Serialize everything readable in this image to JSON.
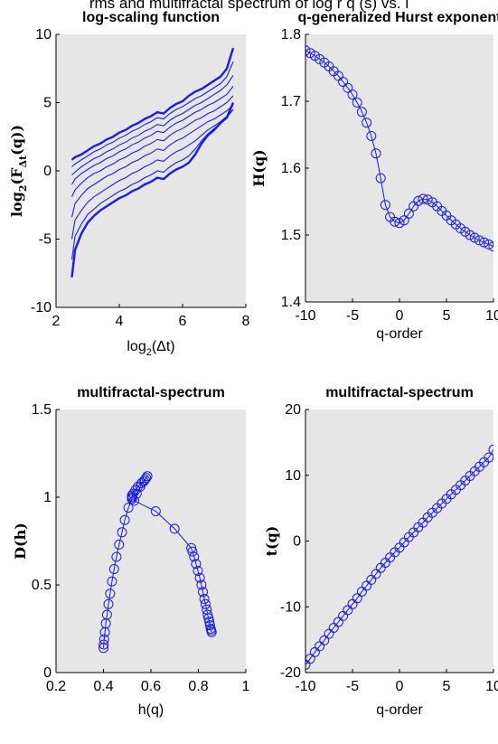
{
  "figure": {
    "heading": "rms and multifractal spectrum of log r q (s) vs. l"
  },
  "colors": {
    "series": "#1a1aee",
    "axes_bg": "#e6e6e6",
    "axis": "#000000"
  },
  "chart_data": [
    {
      "id": "log-scaling",
      "type": "line",
      "title": "log-scaling function",
      "xlabel": "log2(Δt)",
      "ylabel": "log2(F_Δt(q))",
      "xlim": [
        2,
        8
      ],
      "ylim": [
        -10,
        10
      ],
      "xticks": [
        2,
        4,
        6,
        8
      ],
      "yticks": [
        -10,
        -5,
        0,
        5,
        10
      ],
      "grid": false,
      "x": [
        2.5,
        2.6,
        2.8,
        3.0,
        3.2,
        3.4,
        3.6,
        3.8,
        4.0,
        4.2,
        4.4,
        4.6,
        4.8,
        5.0,
        5.2,
        5.4,
        5.6,
        5.8,
        6.0,
        6.2,
        6.4,
        6.6,
        6.8,
        7.0,
        7.2,
        7.4,
        7.6
      ],
      "series": [
        {
          "values": [
            0.8,
            1.0,
            1.2,
            1.5,
            1.8,
            2.0,
            2.3,
            2.5,
            2.8,
            3.0,
            3.3,
            3.5,
            3.8,
            4.0,
            4.3,
            4.2,
            4.6,
            4.9,
            5.1,
            5.5,
            5.8,
            6.0,
            6.3,
            6.6,
            6.9,
            7.5,
            9.0
          ]
        },
        {
          "values": [
            0.3,
            0.5,
            0.8,
            1.1,
            1.4,
            1.6,
            1.9,
            2.1,
            2.4,
            2.6,
            2.9,
            3.1,
            3.4,
            3.6,
            3.9,
            3.8,
            4.2,
            4.5,
            4.7,
            5.0,
            5.3,
            5.5,
            5.8,
            6.1,
            6.4,
            6.9,
            8.0
          ]
        },
        {
          "values": [
            -0.3,
            -0.1,
            0.3,
            0.6,
            0.9,
            1.1,
            1.4,
            1.6,
            1.9,
            2.1,
            2.4,
            2.6,
            2.9,
            3.1,
            3.4,
            3.3,
            3.7,
            4.0,
            4.2,
            4.5,
            4.8,
            5.0,
            5.3,
            5.6,
            5.9,
            6.3,
            7.0
          ]
        },
        {
          "values": [
            -1.0,
            -0.6,
            -0.2,
            0.1,
            0.4,
            0.6,
            0.9,
            1.1,
            1.4,
            1.6,
            1.9,
            2.1,
            2.4,
            2.6,
            2.9,
            2.8,
            3.2,
            3.5,
            3.7,
            4.0,
            4.3,
            4.5,
            4.8,
            5.0,
            5.3,
            5.6,
            6.2
          ]
        },
        {
          "values": [
            -1.9,
            -1.4,
            -0.9,
            -0.5,
            -0.2,
            0.0,
            0.3,
            0.5,
            0.8,
            1.0,
            1.3,
            1.5,
            1.8,
            2.0,
            2.3,
            2.2,
            2.6,
            2.9,
            3.1,
            3.4,
            3.7,
            3.9,
            4.2,
            4.4,
            4.7,
            5.0,
            5.5
          ]
        },
        {
          "values": [
            -3.4,
            -2.4,
            -1.8,
            -1.3,
            -1.0,
            -0.7,
            -0.4,
            -0.2,
            0.1,
            0.3,
            0.6,
            0.8,
            1.1,
            1.3,
            1.6,
            1.5,
            1.9,
            2.2,
            2.4,
            2.7,
            3.0,
            3.3,
            3.6,
            3.8,
            4.1,
            4.4,
            4.8
          ]
        },
        {
          "values": [
            -5.0,
            -3.6,
            -2.9,
            -2.3,
            -1.9,
            -1.6,
            -1.3,
            -1.0,
            -0.7,
            -0.5,
            -0.2,
            0.0,
            0.3,
            0.5,
            0.8,
            0.7,
            1.1,
            1.4,
            1.6,
            1.9,
            2.2,
            2.6,
            3.0,
            3.3,
            3.6,
            4.0,
            4.5
          ]
        },
        {
          "values": [
            -6.5,
            -4.8,
            -3.9,
            -3.2,
            -2.8,
            -2.4,
            -2.1,
            -1.8,
            -1.5,
            -1.3,
            -1.0,
            -0.8,
            -0.5,
            -0.3,
            0.0,
            -0.1,
            0.3,
            0.6,
            0.8,
            1.1,
            1.6,
            2.2,
            2.7,
            3.1,
            3.5,
            3.9,
            4.5
          ]
        },
        {
          "values": [
            -7.8,
            -5.8,
            -4.6,
            -3.8,
            -3.3,
            -2.9,
            -2.6,
            -2.3,
            -2.0,
            -1.8,
            -1.5,
            -1.3,
            -1.0,
            -0.8,
            -0.5,
            -0.6,
            -0.2,
            0.1,
            0.3,
            0.6,
            1.2,
            2.0,
            2.6,
            3.0,
            3.5,
            3.9,
            5.0
          ]
        }
      ]
    },
    {
      "id": "hurst",
      "type": "line",
      "title": "q-generalized Hurst exponent",
      "xlabel": "q-order",
      "ylabel": "H(q)",
      "xlim": [
        -10,
        10
      ],
      "ylim": [
        1.4,
        1.8
      ],
      "xticks": [
        -10,
        -5,
        0,
        5,
        10
      ],
      "yticks": [
        1.4,
        1.5,
        1.6,
        1.7,
        1.8
      ],
      "grid": false,
      "marker": "circle",
      "x": [
        -10,
        -9.5,
        -9,
        -8.5,
        -8,
        -7.5,
        -7,
        -6.5,
        -6,
        -5.5,
        -5,
        -4.5,
        -4,
        -3.5,
        -3,
        -2.5,
        -2,
        -1.5,
        -1,
        -0.5,
        0,
        0.5,
        1,
        1.5,
        2,
        2.5,
        3,
        3.5,
        4,
        4.5,
        5,
        5.5,
        6,
        6.5,
        7,
        7.5,
        8,
        8.5,
        9,
        9.5,
        10
      ],
      "values": [
        1.776,
        1.772,
        1.768,
        1.763,
        1.758,
        1.752,
        1.745,
        1.738,
        1.729,
        1.72,
        1.71,
        1.698,
        1.684,
        1.668,
        1.648,
        1.622,
        1.585,
        1.545,
        1.527,
        1.52,
        1.518,
        1.522,
        1.532,
        1.543,
        1.551,
        1.554,
        1.553,
        1.549,
        1.543,
        1.536,
        1.529,
        1.522,
        1.516,
        1.51,
        1.505,
        1.5,
        1.496,
        1.492,
        1.489,
        1.486,
        1.483
      ]
    },
    {
      "id": "spectrum",
      "type": "line",
      "title": "multifractal-spectrum",
      "xlabel": "h(q)",
      "ylabel": "D(h)",
      "xlim": [
        0.2,
        1
      ],
      "ylim": [
        0,
        1.5
      ],
      "xticks": [
        0.2,
        0.4,
        0.6,
        0.8,
        1
      ],
      "yticks": [
        0,
        0.5,
        1,
        1.5
      ],
      "grid": false,
      "marker": "circle",
      "x": [
        0.4,
        0.401,
        0.403,
        0.406,
        0.41,
        0.415,
        0.421,
        0.428,
        0.436,
        0.445,
        0.455,
        0.466,
        0.478,
        0.49,
        0.505,
        0.52,
        0.52,
        0.52,
        0.52,
        0.52,
        0.525,
        0.535,
        0.545,
        0.56,
        0.575,
        0.585,
        0.58,
        0.57,
        0.555,
        0.54,
        0.53,
        0.62,
        0.7,
        0.77,
        0.775,
        0.782,
        0.79,
        0.798,
        0.806,
        0.813,
        0.819,
        0.825,
        0.83,
        0.835,
        0.839,
        0.843,
        0.846,
        0.849,
        0.852,
        0.854,
        0.856
      ],
      "values": [
        0.14,
        0.16,
        0.19,
        0.23,
        0.28,
        0.33,
        0.39,
        0.45,
        0.52,
        0.59,
        0.66,
        0.73,
        0.8,
        0.87,
        0.94,
        0.99,
        1.0,
        1.01,
        0.99,
        1.0,
        1.02,
        1.04,
        1.06,
        1.08,
        1.1,
        1.12,
        1.11,
        1.09,
        1.06,
        1.02,
        0.98,
        0.92,
        0.82,
        0.71,
        0.69,
        0.66,
        0.62,
        0.58,
        0.54,
        0.5,
        0.46,
        0.42,
        0.39,
        0.36,
        0.33,
        0.31,
        0.29,
        0.27,
        0.25,
        0.24,
        0.23
      ]
    },
    {
      "id": "tau",
      "type": "line",
      "title": "multifractal-spectrum",
      "xlabel": "q-order",
      "ylabel": "t(q)",
      "xlim": [
        -10,
        10
      ],
      "ylim": [
        -20,
        20
      ],
      "xticks": [
        -10,
        -5,
        0,
        5,
        10
      ],
      "yticks": [
        -20,
        -10,
        0,
        10,
        20
      ],
      "grid": false,
      "marker": "circle",
      "x": [
        -10,
        -9.5,
        -9,
        -8.5,
        -8,
        -7.5,
        -7,
        -6.5,
        -6,
        -5.5,
        -5,
        -4.5,
        -4,
        -3.5,
        -3,
        -2.5,
        -2,
        -1.5,
        -1,
        -0.5,
        0,
        0.5,
        1,
        1.5,
        2,
        2.5,
        3,
        3.5,
        4,
        4.5,
        5,
        5.5,
        6,
        6.5,
        7,
        7.5,
        8,
        8.5,
        9,
        9.5,
        10
      ],
      "values": [
        -18.8,
        -17.9,
        -16.9,
        -16.0,
        -15.1,
        -14.1,
        -13.2,
        -12.3,
        -11.4,
        -10.5,
        -9.6,
        -8.7,
        -7.7,
        -6.8,
        -5.9,
        -5.0,
        -4.1,
        -3.3,
        -2.5,
        -1.7,
        -1.0,
        -0.2,
        0.6,
        1.3,
        2.1,
        2.8,
        3.6,
        4.3,
        5.0,
        5.7,
        6.4,
        7.1,
        7.8,
        8.5,
        9.2,
        9.9,
        10.6,
        11.3,
        12.0,
        12.7,
        13.9
      ]
    }
  ]
}
